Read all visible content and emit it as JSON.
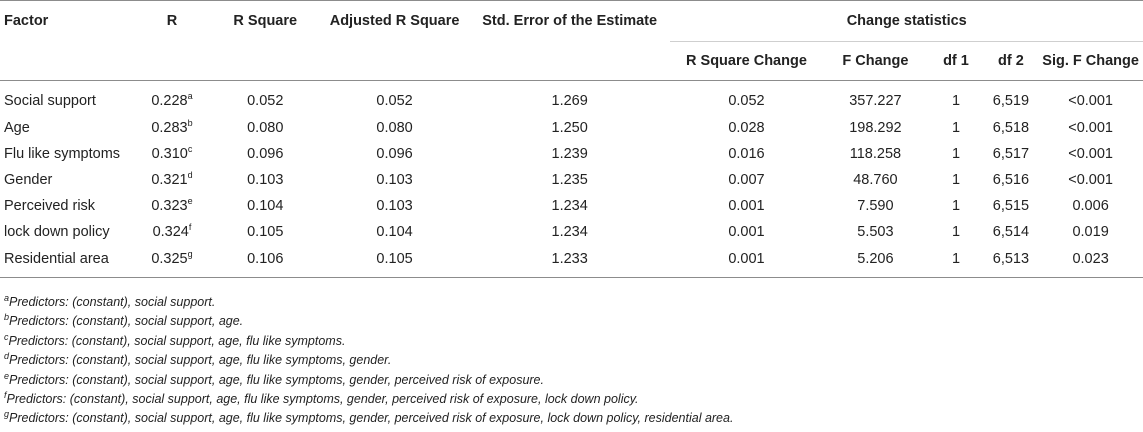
{
  "headers": {
    "factor": "Factor",
    "r": "R",
    "r_square": "R Square",
    "adj_r_square": "Adjusted R Square",
    "std_error": "Std. Error of the Estimate",
    "change_statistics": "Change statistics",
    "r_square_change": "R Square Change",
    "f_change": "F Change",
    "df1": "df 1",
    "df2": "df 2",
    "sig_f_change": "Sig. F Change"
  },
  "rows": [
    {
      "factor": "Social support",
      "r": "0.228",
      "sup": "a",
      "r_square": "0.052",
      "adj_r_square": "0.052",
      "std_error": "1.269",
      "r_square_change": "0.052",
      "f_change": "357.227",
      "df1": "1",
      "df2": "6,519",
      "sig": "<0.001"
    },
    {
      "factor": "Age",
      "r": "0.283",
      "sup": "b",
      "r_square": "0.080",
      "adj_r_square": "0.080",
      "std_error": "1.250",
      "r_square_change": "0.028",
      "f_change": "198.292",
      "df1": "1",
      "df2": "6,518",
      "sig": "<0.001"
    },
    {
      "factor": "Flu like symptoms",
      "r": "0.310",
      "sup": "c",
      "r_square": "0.096",
      "adj_r_square": "0.096",
      "std_error": "1.239",
      "r_square_change": "0.016",
      "f_change": "118.258",
      "df1": "1",
      "df2": "6,517",
      "sig": "<0.001"
    },
    {
      "factor": "Gender",
      "r": "0.321",
      "sup": "d",
      "r_square": "0.103",
      "adj_r_square": "0.103",
      "std_error": "1.235",
      "r_square_change": "0.007",
      "f_change": "48.760",
      "df1": "1",
      "df2": "6,516",
      "sig": "<0.001"
    },
    {
      "factor": "Perceived risk",
      "r": "0.323",
      "sup": "e",
      "r_square": "0.104",
      "adj_r_square": "0.103",
      "std_error": "1.234",
      "r_square_change": "0.001",
      "f_change": "7.590",
      "df1": "1",
      "df2": "6,515",
      "sig": "0.006"
    },
    {
      "factor": "lock down policy",
      "r": "0.324",
      "sup": "f",
      "r_square": "0.105",
      "adj_r_square": "0.104",
      "std_error": "1.234",
      "r_square_change": "0.001",
      "f_change": "5.503",
      "df1": "1",
      "df2": "6,514",
      "sig": "0.019"
    },
    {
      "factor": "Residential area",
      "r": "0.325",
      "sup": "g",
      "r_square": "0.106",
      "adj_r_square": "0.105",
      "std_error": "1.233",
      "r_square_change": "0.001",
      "f_change": "5.206",
      "df1": "1",
      "df2": "6,513",
      "sig": "0.023"
    }
  ],
  "notes": [
    {
      "mark": "a",
      "text": "Predictors: (constant), social support."
    },
    {
      "mark": "b",
      "text": "Predictors: (constant), social support, age."
    },
    {
      "mark": "c",
      "text": "Predictors: (constant), social support, age, flu like symptoms."
    },
    {
      "mark": "d",
      "text": "Predictors: (constant), social support, age, flu like symptoms, gender."
    },
    {
      "mark": "e",
      "text": "Predictors: (constant), social support, age, flu like symptoms, gender, perceived risk of exposure."
    },
    {
      "mark": "f",
      "text": "Predictors: (constant), social support, age, flu like symptoms, gender, perceived risk of exposure, lock down policy."
    },
    {
      "mark": "g",
      "text": "Predictors: (constant), social support, age, flu like symptoms, gender, perceived risk of exposure, lock down policy, residential area."
    }
  ]
}
